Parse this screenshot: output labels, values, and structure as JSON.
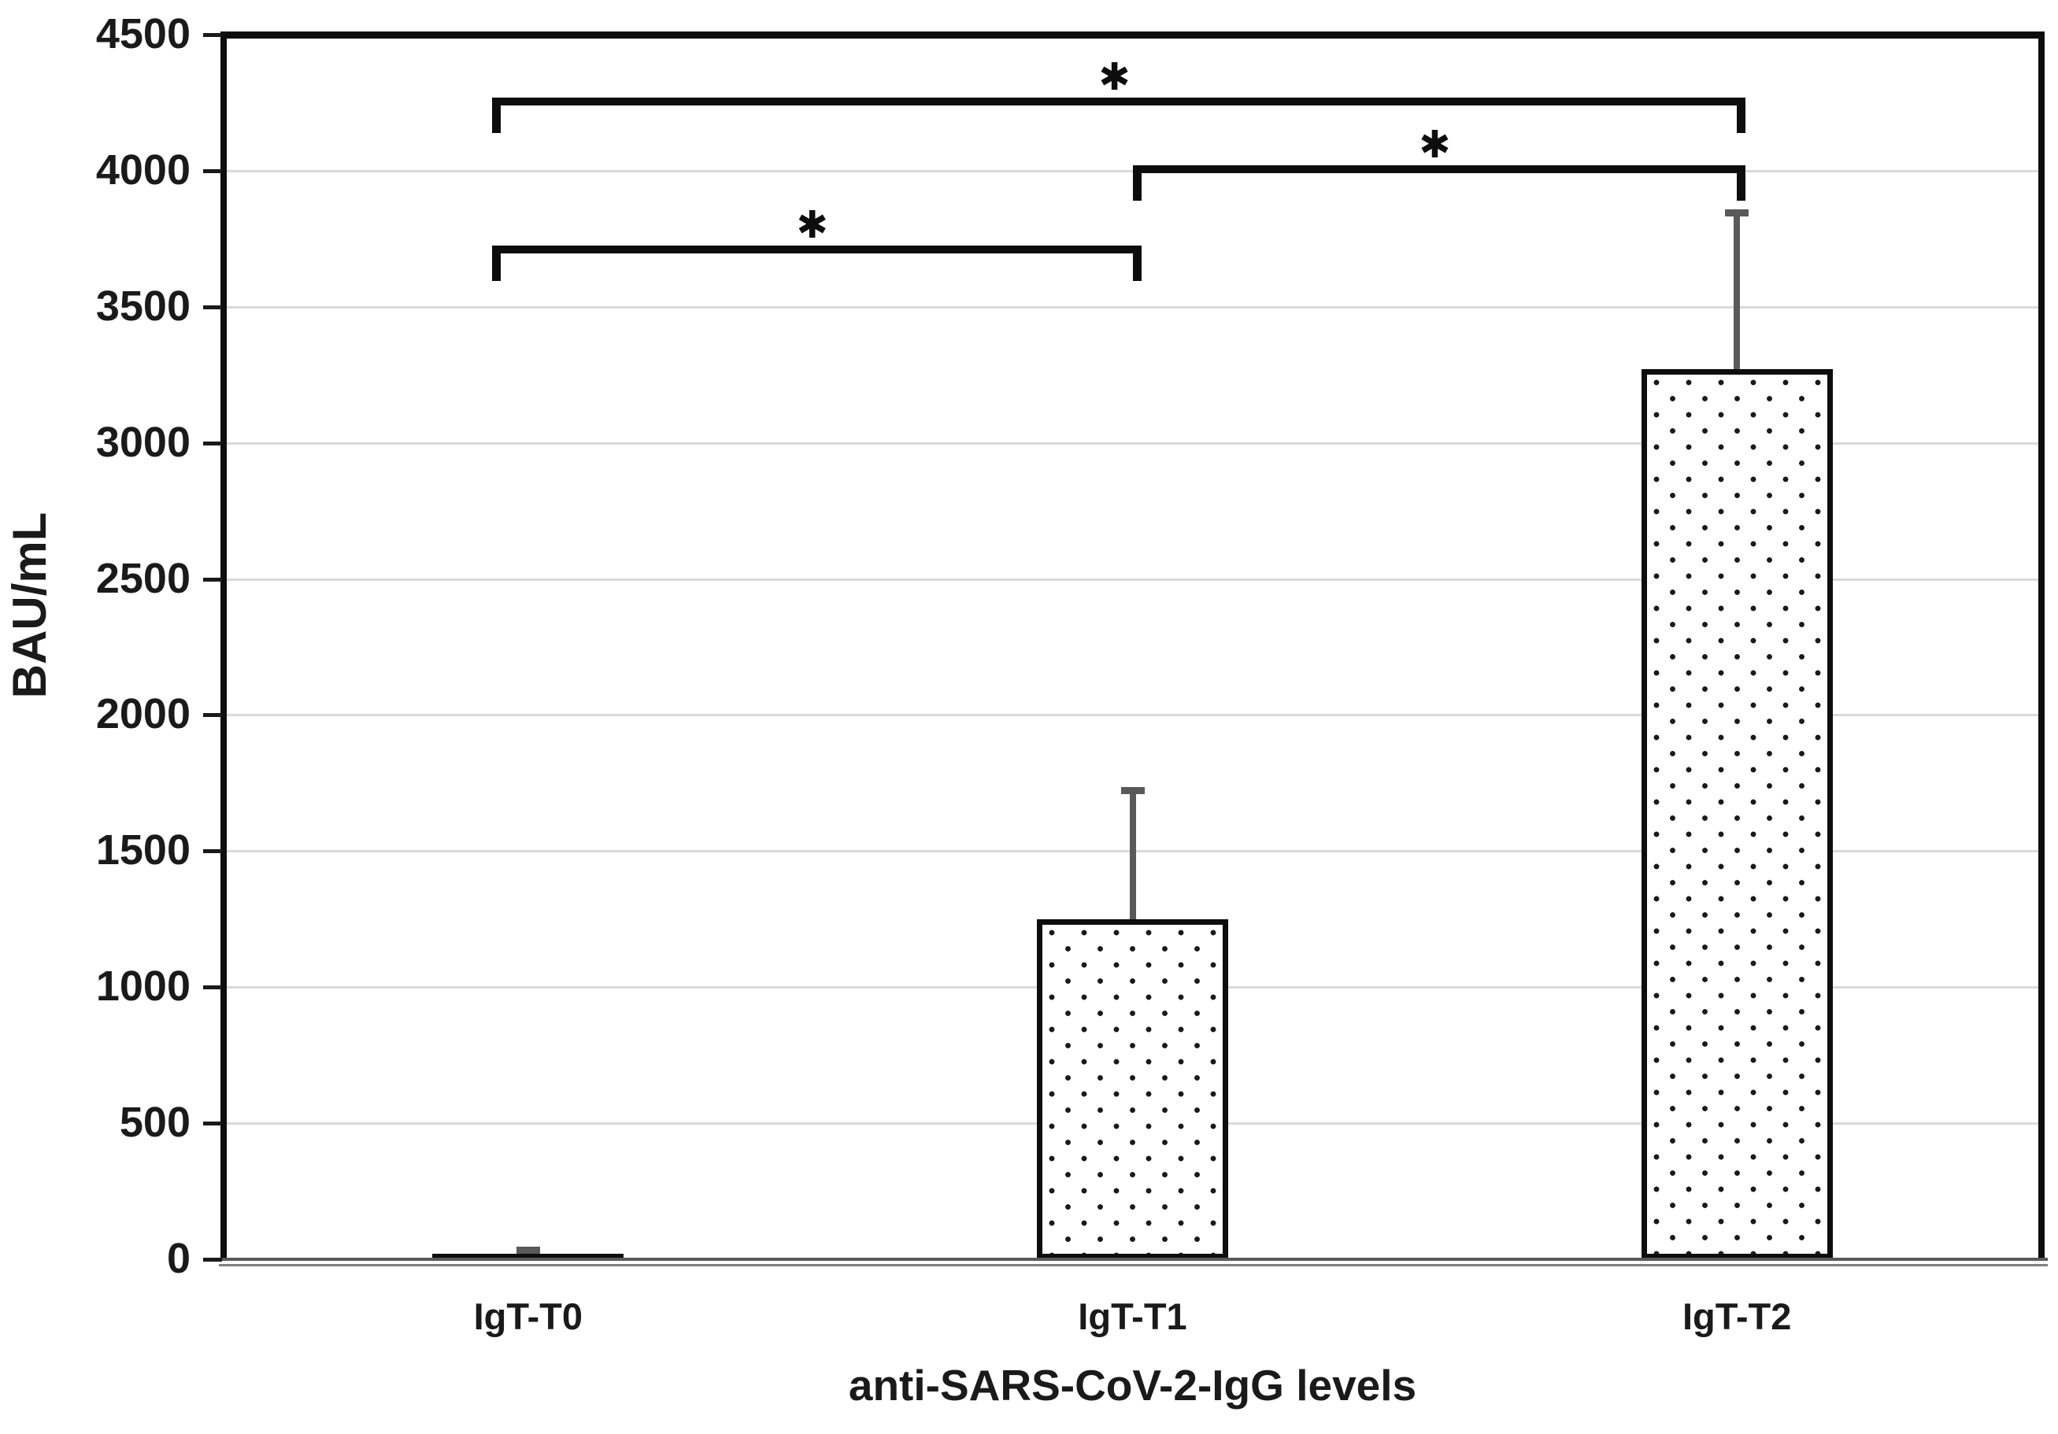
{
  "figure": {
    "background": "#ffffff"
  },
  "chart_data": {
    "type": "bar",
    "title": "",
    "xlabel": "anti-SARS-CoV-2-IgG levels",
    "ylabel": "BAU/mL",
    "categories": [
      "IgT-T0",
      "IgT-T1",
      "IgT-T2"
    ],
    "values": [
      20,
      1250,
      3270
    ],
    "error_up": [
      15,
      475,
      575
    ],
    "ylim": [
      0,
      4500
    ],
    "yticks": [
      0,
      500,
      1000,
      1500,
      2000,
      2500,
      3000,
      3500,
      4000,
      4500
    ],
    "grid": true,
    "legend": false,
    "bar_fill": "white with black polka-dot pattern",
    "significance_brackets": [
      {
        "from": 0,
        "to": 2,
        "label": "✱",
        "y": 4255
      },
      {
        "from": 1,
        "to": 2,
        "label": "✱",
        "y": 4005
      },
      {
        "from": 0,
        "to": 1,
        "label": "✱",
        "y": 3710
      }
    ],
    "colors": {
      "bar_border": "#0d0d0d",
      "bar_dots": "#1a1a1a",
      "error_bar": "#595959",
      "gridline": "#d9d9d9",
      "axis_line": "#0d0d0d",
      "baseline": "#7f7f7f",
      "text": "#1a1a1a",
      "bracket": "#0d0d0d"
    }
  }
}
